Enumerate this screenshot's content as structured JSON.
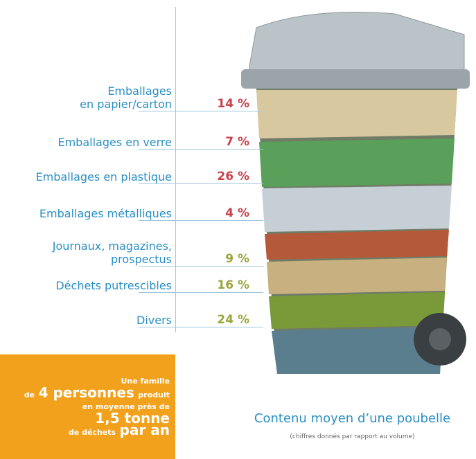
{
  "items": [
    {
      "label": [
        "Emballages",
        "en papier/carton"
      ],
      "value": "14 %",
      "color": "#c8414a"
    },
    {
      "label": [
        "Emballages en verre"
      ],
      "value": "7 %",
      "color": "#c8414a"
    },
    {
      "label": [
        "Emballages en plastique"
      ],
      "value": "26 %",
      "color": "#c8414a"
    },
    {
      "label": [
        "Emballages métalliques"
      ],
      "value": "4 %",
      "color": "#c8414a"
    },
    {
      "label": [
        "Journaux, magazines,",
        "prospectus"
      ],
      "value": "9 %",
      "color": "#9aa63a"
    },
    {
      "label": [
        "Déchets putrescibles"
      ],
      "value": "16 %",
      "color": "#9aa63a"
    },
    {
      "label": [
        "Divers"
      ],
      "value": "24 %",
      "color": "#9aa63a"
    }
  ],
  "box": {
    "line1": "Une famille",
    "line2a": "de",
    "line2b": "4 personnes",
    "line2c": "produit",
    "line3": "en moyenne près de",
    "line4": "1,5 tonne",
    "line5a": "de déchets",
    "line5b": "par an"
  },
  "caption": {
    "title": "Contenu moyen d’une poubelle",
    "note": "(chiffres donnés par rapport au volume)"
  }
}
